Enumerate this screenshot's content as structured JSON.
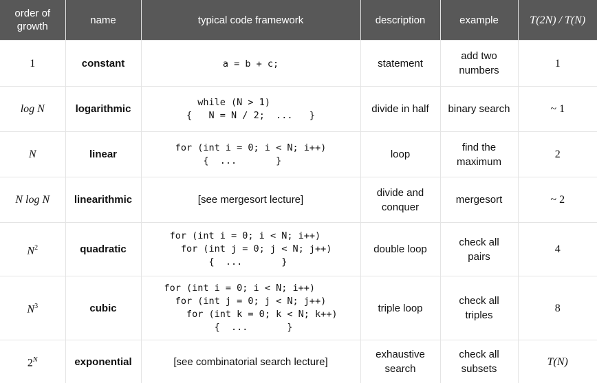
{
  "headers": {
    "order": "order of growth",
    "name": "name",
    "code": "typical code framework",
    "description": "description",
    "example": "example",
    "ratio": "T(2N) / T(N)"
  },
  "rows": [
    {
      "order": "1",
      "name": "constant",
      "code": [
        "a = b + c;"
      ],
      "description": "statement",
      "example": "add two numbers",
      "ratio": "1"
    },
    {
      "order": "log N",
      "name": "logarithmic",
      "code": [
        "  while (N > 1)",
        "{   N = N / 2;  ...   }"
      ],
      "description": "divide in half",
      "example": "binary search",
      "ratio": "~ 1"
    },
    {
      "order": "N",
      "name": "linear",
      "code": [
        "for (int i = 0; i < N; i++)",
        "     {  ...       }"
      ],
      "description": "loop",
      "example": "find the maximum",
      "ratio": "2"
    },
    {
      "order": "N log N",
      "name": "linearithmic",
      "code": [
        "[see mergesort lecture]"
      ],
      "description": "divide and conquer",
      "example": "mergesort",
      "ratio": "~ 2"
    },
    {
      "order": "N",
      "order_exp": "2",
      "name": "quadratic",
      "code": [
        "for (int i = 0; i < N; i++)",
        "  for (int j = 0; j < N; j++)",
        "       {  ...       }"
      ],
      "description": "double loop",
      "example": "check all pairs",
      "ratio": "4"
    },
    {
      "order": "N",
      "order_exp": "3",
      "name": "cubic",
      "code": [
        "for (int i = 0; i < N; i++)",
        "  for (int j = 0; j < N; j++)",
        "    for (int k = 0; k < N; k++)",
        "         {  ...       }"
      ],
      "description": "triple loop",
      "example": "check all triples",
      "ratio": "8"
    },
    {
      "order": "2",
      "order_exp": "N",
      "name": "exponential",
      "code": [
        "[see combinatorial search lecture]"
      ],
      "description": "exhaustive search",
      "example": "check all subsets",
      "ratio": "T(N)"
    }
  ]
}
